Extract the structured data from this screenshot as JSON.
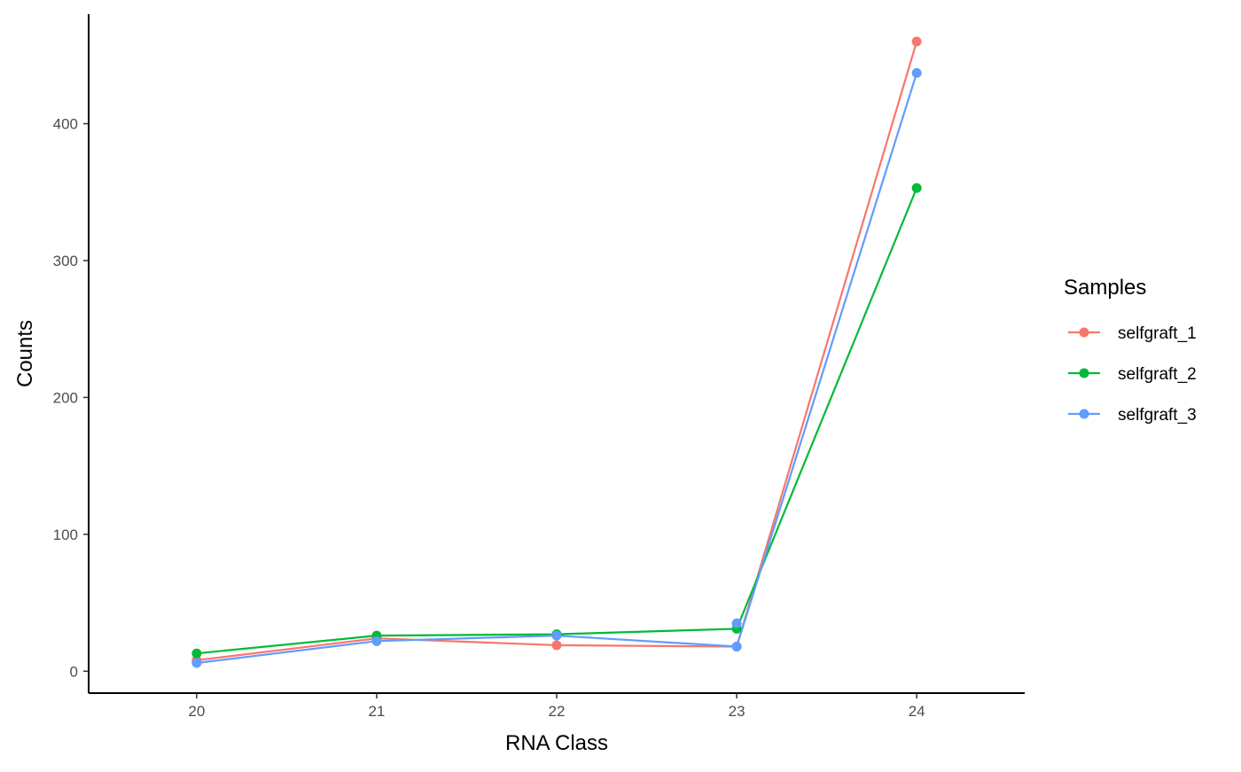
{
  "chart_data": {
    "type": "line",
    "xlabel": "RNA Class",
    "ylabel": "Counts",
    "x": [
      20,
      21,
      22,
      23,
      24
    ],
    "xlim": [
      19.4,
      24.6
    ],
    "ylim": [
      -16,
      480
    ],
    "yticks": [
      0,
      100,
      200,
      300,
      400
    ],
    "grid": false,
    "legend": {
      "title": "Samples",
      "position": "right"
    },
    "series": [
      {
        "name": "selfgraft_1",
        "color": "#F8766D",
        "values": [
          8,
          24,
          19,
          18,
          460
        ]
      },
      {
        "name": "selfgraft_2",
        "color": "#00BA38",
        "values": [
          13,
          26,
          27,
          31,
          353
        ]
      },
      {
        "name": "selfgraft_3",
        "color": "#619CFF",
        "values": [
          6,
          22,
          26,
          18,
          437
        ]
      }
    ],
    "extra_points": [
      {
        "series": "selfgraft_3",
        "x": 23,
        "y": 35
      }
    ]
  }
}
